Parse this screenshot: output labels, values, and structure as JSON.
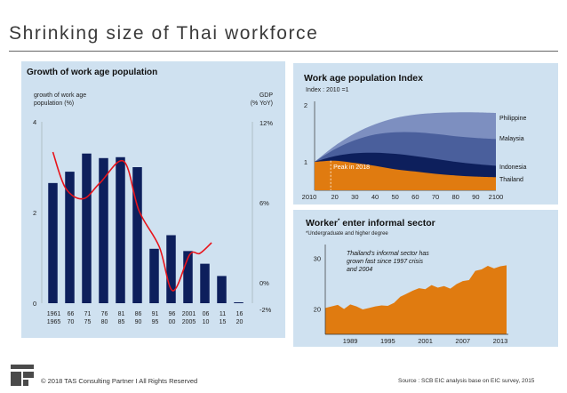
{
  "page": {
    "title": "Shrinking size of Thai workforce",
    "footer_left": "© 2018 TAS Consulting Partner  I  All Rights Reserved",
    "footer_right": "Source : SCB EIC analysis base on EIC survey, 2015"
  },
  "colors": {
    "panel": "#cfe1f0",
    "bar": "#0d1f5c",
    "line": "#e8141b",
    "orange": "#e07b10"
  },
  "chart_data": [
    {
      "id": "growth",
      "type": "bar",
      "title": "Growth of work age population",
      "ylabel": "growth of work age population (%)",
      "y2label": "GDP (% YoY)",
      "ylim": [
        0,
        4
      ],
      "yticks": [
        "4",
        "2",
        "0"
      ],
      "y2ticks": [
        "12%",
        "6%",
        "0%",
        "-2%"
      ],
      "categories": [
        {
          "top": "1961",
          "bottom": "1965"
        },
        {
          "top": "66",
          "bottom": "70"
        },
        {
          "top": "71",
          "bottom": "75"
        },
        {
          "top": "76",
          "bottom": "80"
        },
        {
          "top": "81",
          "bottom": "85"
        },
        {
          "top": "86",
          "bottom": "90"
        },
        {
          "top": "91",
          "bottom": "95"
        },
        {
          "top": "96",
          "bottom": "00"
        },
        {
          "top": "2001",
          "bottom": "2005"
        },
        {
          "top": "06",
          "bottom": "10"
        },
        {
          "top": "11",
          "bottom": "15"
        },
        {
          "top": "16",
          "bottom": "20"
        }
      ],
      "values": [
        2.65,
        2.9,
        3.3,
        3.2,
        3.22,
        3.0,
        1.2,
        1.5,
        1.15,
        0.87,
        0.6,
        0.02
      ],
      "gdp_series": [
        {
          "x": 0,
          "y": 9.8
        },
        {
          "x": 0.75,
          "y": 7.1
        },
        {
          "x": 1.8,
          "y": 6.3
        },
        {
          "x": 2.8,
          "y": 7.5
        },
        {
          "x": 4.2,
          "y": 9.1
        },
        {
          "x": 5.1,
          "y": 5.4
        },
        {
          "x": 6.3,
          "y": 2.7
        },
        {
          "x": 7.1,
          "y": -0.6
        },
        {
          "x": 8.1,
          "y": 2.1
        },
        {
          "x": 8.7,
          "y": 2.2
        },
        {
          "x": 9.4,
          "y": 3.0
        }
      ]
    },
    {
      "id": "index",
      "type": "area",
      "title": "Work age population Index",
      "subtitle": "Index : 2010 =1",
      "x": [
        "2010",
        "20",
        "30",
        "40",
        "50",
        "60",
        "70",
        "80",
        "90",
        "2100"
      ],
      "ylim": [
        0.5,
        2
      ],
      "yticks": [
        "2",
        "1"
      ],
      "annotation": "Peak in 2018",
      "series": [
        {
          "name": "Thailand",
          "values": [
            1.0,
            1.02,
            0.98,
            0.93,
            0.87,
            0.83,
            0.79,
            0.76,
            0.74,
            0.73
          ]
        },
        {
          "name": "Indonesia",
          "values": [
            1.0,
            1.1,
            1.15,
            1.16,
            1.14,
            1.1,
            1.05,
            1.0,
            0.96,
            0.93
          ]
        },
        {
          "name": "Malaysia",
          "values": [
            1.0,
            1.22,
            1.38,
            1.48,
            1.52,
            1.52,
            1.49,
            1.45,
            1.42,
            1.4
          ]
        },
        {
          "name": "Philippine",
          "values": [
            1.0,
            1.28,
            1.5,
            1.66,
            1.77,
            1.83,
            1.86,
            1.87,
            1.87,
            1.86
          ]
        }
      ]
    },
    {
      "id": "informal",
      "type": "area",
      "title": "Worker",
      "title_sup": "*",
      "title_rest": " enter informal sector",
      "note": "*Undergraduate and higher degree",
      "annotation_lines": [
        "Thailand's informal sector has",
        "grown  fast since   1997 crisis",
        "and 2004"
      ],
      "x_ticks": [
        "1989",
        "1995",
        "2001",
        "2007",
        "2013"
      ],
      "yticks": [
        "30",
        "20"
      ],
      "ylim": [
        15,
        32
      ],
      "xlim": [
        1985,
        2014
      ],
      "years": [
        1985,
        1986,
        1987,
        1988,
        1989,
        1990,
        1991,
        1992,
        1993,
        1994,
        1995,
        1996,
        1997,
        1998,
        1999,
        2000,
        2001,
        2002,
        2003,
        2004,
        2005,
        2006,
        2007,
        2008,
        2009,
        2010,
        2011,
        2012,
        2013,
        2014
      ],
      "values": [
        20.2,
        20.5,
        20.8,
        20.0,
        20.9,
        20.5,
        19.9,
        20.2,
        20.5,
        20.7,
        20.6,
        21.2,
        22.4,
        23.0,
        23.6,
        24.1,
        23.9,
        24.7,
        24.2,
        24.5,
        24.0,
        24.9,
        25.5,
        25.7,
        27.5,
        27.8,
        28.5,
        28.0,
        28.4,
        28.6
      ]
    }
  ]
}
